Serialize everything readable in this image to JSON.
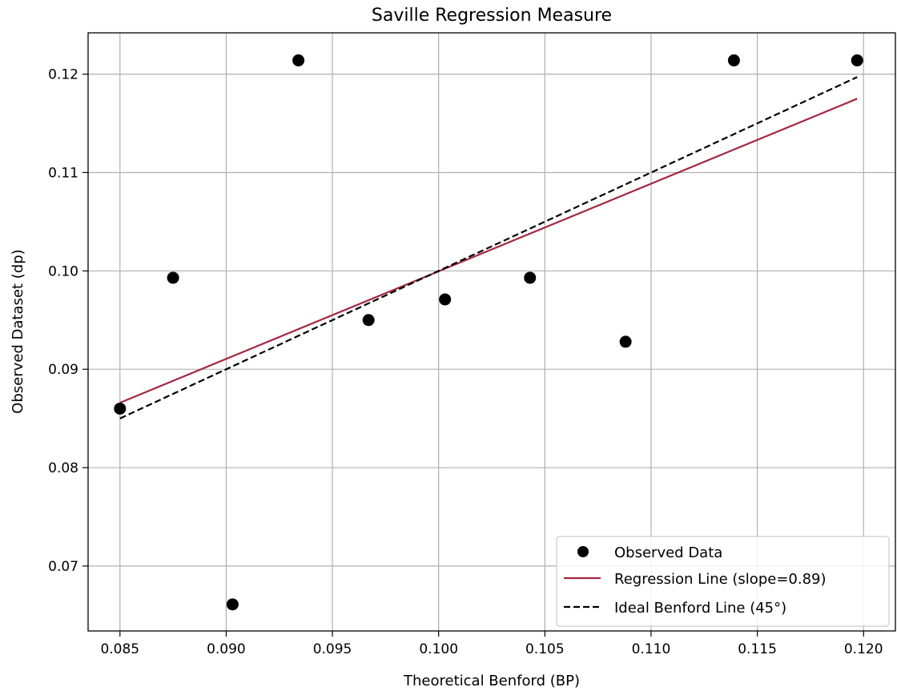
{
  "chart_data": {
    "type": "scatter",
    "title": "Saville Regression Measure",
    "xlabel": "Theoretical Benford (BP)",
    "ylabel": "Observed Dataset (dp)",
    "xlim": [
      0.0835,
      0.1215
    ],
    "ylim": [
      0.0634,
      0.1242
    ],
    "xticks": [
      0.085,
      0.09,
      0.095,
      0.1,
      0.105,
      0.11,
      0.115,
      0.12
    ],
    "xtick_labels": [
      "0.085",
      "0.090",
      "0.095",
      "0.100",
      "0.105",
      "0.110",
      "0.115",
      "0.120"
    ],
    "yticks": [
      0.07,
      0.08,
      0.09,
      0.1,
      0.11,
      0.12
    ],
    "ytick_labels": [
      "0.07",
      "0.08",
      "0.09",
      "0.10",
      "0.11",
      "0.12"
    ],
    "grid": true,
    "legend_position": "bottom-right",
    "series": [
      {
        "name": "Observed Data",
        "kind": "scatter",
        "color": "#000000",
        "x": [
          0.085,
          0.0875,
          0.0903,
          0.0934,
          0.0967,
          0.1003,
          0.1043,
          0.1088,
          0.1139,
          0.1197
        ],
        "y": [
          0.086,
          0.0993,
          0.0661,
          0.1214,
          0.095,
          0.0971,
          0.0993,
          0.0928,
          0.1214,
          0.1214
        ]
      },
      {
        "name": "Regression Line (slope=0.89)",
        "kind": "line",
        "color": "#a3283f",
        "style": "solid",
        "x": [
          0.085,
          0.1197
        ],
        "y": [
          0.0866,
          0.1175
        ]
      },
      {
        "name": "Ideal Benford Line (45°)",
        "kind": "line",
        "color": "#000000",
        "style": "dashed",
        "x": [
          0.085,
          0.1197
        ],
        "y": [
          0.085,
          0.1197
        ]
      }
    ]
  }
}
